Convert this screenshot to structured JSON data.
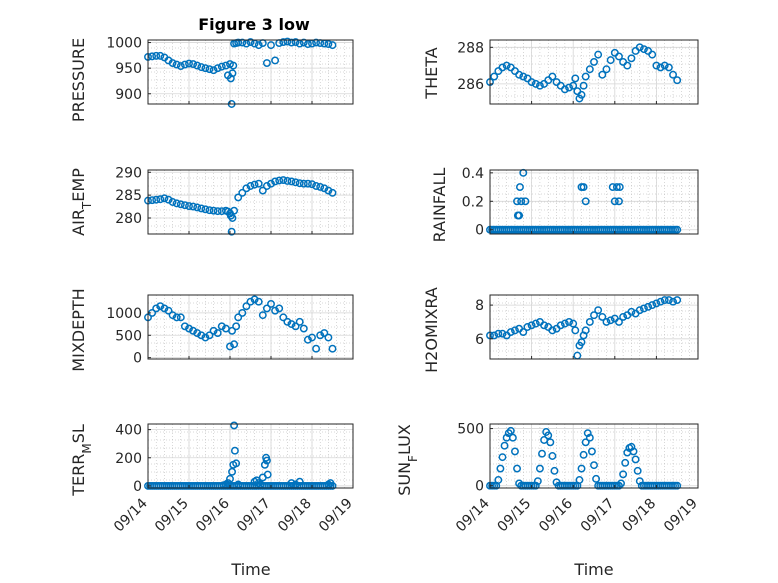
{
  "figure": {
    "title": "Figure 3 low",
    "xlabel": "Time",
    "marker_color": "#0072BD",
    "axis_color": "#262626",
    "grid_color": "#b0b0b0"
  },
  "chart_data": [
    {
      "type": "scatter",
      "ylabel": "PRESSURE",
      "title": "Figure 3 low",
      "xlim": [
        0,
        5
      ],
      "ylim": [
        880,
        1005
      ],
      "yticks": [
        900,
        950,
        1000
      ],
      "ytick_labels": [
        "900",
        "950",
        "1000"
      ],
      "xticks": [],
      "xtick_labels": [],
      "x": [
        0,
        0.1,
        0.2,
        0.3,
        0.4,
        0.5,
        0.6,
        0.7,
        0.8,
        0.9,
        1.0,
        1.1,
        1.2,
        1.3,
        1.4,
        1.5,
        1.6,
        1.7,
        1.8,
        1.9,
        1.95,
        2.0,
        2.02,
        2.04,
        2.06,
        2.08,
        2.1,
        2.15,
        2.2,
        2.3,
        2.4,
        2.5,
        2.6,
        2.7,
        2.8,
        2.9,
        3.0,
        3.1,
        3.2,
        3.3,
        3.4,
        3.5,
        3.6,
        3.7,
        3.8,
        3.9,
        4.0,
        4.1,
        4.2,
        4.3,
        4.4,
        4.5
      ],
      "values": [
        972,
        973,
        974,
        974,
        971,
        965,
        960,
        957,
        954,
        957,
        959,
        958,
        955,
        952,
        950,
        948,
        946,
        950,
        953,
        955,
        936,
        958,
        930,
        880,
        940,
        955,
        998,
        999,
        1000,
        1000,
        998,
        1001,
        998,
        995,
        999,
        960,
        995,
        965,
        999,
        1001,
        1002,
        1000,
        1001,
        998,
        1000,
        997,
        998,
        1000,
        999,
        998,
        997,
        995
      ]
    },
    {
      "type": "scatter",
      "ylabel": "THETA",
      "xlim": [
        0,
        5
      ],
      "ylim": [
        284.9,
        288.4
      ],
      "yticks": [
        286,
        288
      ],
      "ytick_labels": [
        "286",
        "288"
      ],
      "xticks": [],
      "xtick_labels": [],
      "x": [
        0,
        0.1,
        0.2,
        0.3,
        0.4,
        0.5,
        0.6,
        0.7,
        0.8,
        0.9,
        1.0,
        1.1,
        1.2,
        1.3,
        1.4,
        1.5,
        1.6,
        1.7,
        1.8,
        1.9,
        2.0,
        2.05,
        2.1,
        2.15,
        2.2,
        2.25,
        2.3,
        2.4,
        2.5,
        2.6,
        2.7,
        2.8,
        2.9,
        3.0,
        3.1,
        3.2,
        3.3,
        3.4,
        3.5,
        3.6,
        3.7,
        3.8,
        3.9,
        4.0,
        4.1,
        4.2,
        4.3,
        4.4,
        4.5
      ],
      "values": [
        286.1,
        286.4,
        286.7,
        286.9,
        287.0,
        286.9,
        286.7,
        286.5,
        286.4,
        286.3,
        286.1,
        286.0,
        285.9,
        286.0,
        286.2,
        286.4,
        286.1,
        285.9,
        285.7,
        285.8,
        285.9,
        286.3,
        285.6,
        285.2,
        285.4,
        285.9,
        286.4,
        286.8,
        287.2,
        287.6,
        286.5,
        286.8,
        287.3,
        287.7,
        287.5,
        287.2,
        287.0,
        287.4,
        287.8,
        288.0,
        287.9,
        287.8,
        287.6,
        287.0,
        286.9,
        287.0,
        286.9,
        286.5,
        286.2
      ]
    },
    {
      "type": "scatter",
      "ylabel": "AIR_TEMP",
      "xlim": [
        0,
        5
      ],
      "ylim": [
        276.5,
        290.5
      ],
      "yticks": [
        280,
        285,
        290
      ],
      "ytick_labels": [
        "280",
        "285",
        "290"
      ],
      "xticks": [],
      "xtick_labels": [],
      "x": [
        0,
        0.1,
        0.2,
        0.3,
        0.4,
        0.5,
        0.6,
        0.7,
        0.8,
        0.9,
        1.0,
        1.1,
        1.2,
        1.3,
        1.4,
        1.5,
        1.6,
        1.7,
        1.8,
        1.9,
        1.95,
        2.0,
        2.02,
        2.04,
        2.06,
        2.1,
        2.2,
        2.3,
        2.4,
        2.5,
        2.6,
        2.7,
        2.8,
        2.9,
        3.0,
        3.1,
        3.2,
        3.3,
        3.4,
        3.5,
        3.6,
        3.7,
        3.8,
        3.9,
        4.0,
        4.1,
        4.2,
        4.3,
        4.4,
        4.5
      ],
      "values": [
        283.8,
        283.9,
        284.0,
        284.1,
        284.3,
        284.0,
        283.5,
        283.2,
        283.0,
        282.8,
        282.6,
        282.5,
        282.3,
        282.1,
        281.9,
        281.7,
        281.6,
        281.5,
        281.5,
        281.6,
        281.4,
        281.0,
        280.5,
        277.0,
        280.0,
        281.6,
        284.5,
        285.5,
        286.5,
        287.0,
        287.3,
        287.5,
        286.0,
        287.0,
        287.5,
        288.0,
        288.2,
        288.3,
        288.1,
        288.0,
        287.8,
        287.6,
        287.5,
        287.5,
        287.4,
        287.0,
        286.8,
        286.5,
        286.0,
        285.5
      ]
    },
    {
      "type": "scatter",
      "ylabel": "RAINFALL",
      "xlim": [
        0,
        5
      ],
      "ylim": [
        -0.03,
        0.42
      ],
      "yticks": [
        0,
        0.2,
        0.4
      ],
      "ytick_labels": [
        "0",
        "0.2",
        "0.4"
      ],
      "xticks": [],
      "xtick_labels": [],
      "x": [
        0,
        0.05,
        0.1,
        0.15,
        0.2,
        0.25,
        0.3,
        0.35,
        0.4,
        0.45,
        0.5,
        0.55,
        0.6,
        0.65,
        0.7,
        0.75,
        0.8,
        0.85,
        0.9,
        0.95,
        1.0,
        1.05,
        1.1,
        1.15,
        1.2,
        1.25,
        1.3,
        1.35,
        1.4,
        1.45,
        1.5,
        1.55,
        1.6,
        1.65,
        1.7,
        1.75,
        1.8,
        1.85,
        1.9,
        1.95,
        2.0,
        2.05,
        2.1,
        2.15,
        2.2,
        2.25,
        2.3,
        2.35,
        2.4,
        2.45,
        2.5,
        2.55,
        2.6,
        2.65,
        2.7,
        2.75,
        2.8,
        2.85,
        2.9,
        2.95,
        3.0,
        3.05,
        3.1,
        3.15,
        3.2,
        3.25,
        3.3,
        3.35,
        3.4,
        3.45,
        3.5,
        3.55,
        3.6,
        3.65,
        3.7,
        3.75,
        3.8,
        3.85,
        3.9,
        3.95,
        4.0,
        4.05,
        4.1,
        4.15,
        4.2,
        4.25,
        4.3,
        4.35,
        4.4,
        4.45,
        4.5,
        0.65,
        0.67,
        0.7,
        0.72,
        0.75,
        0.8,
        0.85,
        2.2,
        2.25,
        2.3,
        2.95,
        3.0,
        3.05,
        3.1,
        3.12
      ],
      "values": [
        0,
        0,
        0,
        0,
        0,
        0,
        0,
        0,
        0,
        0,
        0,
        0,
        0,
        0,
        0,
        0,
        0,
        0,
        0,
        0,
        0,
        0,
        0,
        0,
        0,
        0,
        0,
        0,
        0,
        0,
        0,
        0,
        0,
        0,
        0,
        0,
        0,
        0,
        0,
        0,
        0,
        0,
        0,
        0,
        0,
        0,
        0,
        0,
        0,
        0,
        0,
        0,
        0,
        0,
        0,
        0,
        0,
        0,
        0,
        0,
        0,
        0,
        0,
        0,
        0,
        0,
        0,
        0,
        0,
        0,
        0,
        0,
        0,
        0,
        0,
        0,
        0,
        0,
        0,
        0,
        0,
        0,
        0,
        0,
        0,
        0,
        0,
        0,
        0,
        0,
        0,
        0.2,
        0.1,
        0.1,
        0.3,
        0.2,
        0.4,
        0.2,
        0.3,
        0.3,
        0.2,
        0.3,
        0.2,
        0.3,
        0.2,
        0.3
      ]
    },
    {
      "type": "scatter",
      "ylabel": "MIXDEPTH",
      "xlim": [
        0,
        5
      ],
      "ylim": [
        -30,
        1400
      ],
      "yticks": [
        0,
        500,
        1000
      ],
      "ytick_labels": [
        "0",
        "500",
        "1000"
      ],
      "xticks": [],
      "xtick_labels": [],
      "x": [
        0,
        0.1,
        0.2,
        0.3,
        0.4,
        0.5,
        0.6,
        0.7,
        0.8,
        0.9,
        1.0,
        1.1,
        1.2,
        1.3,
        1.4,
        1.5,
        1.6,
        1.7,
        1.8,
        1.9,
        2.0,
        2.05,
        2.1,
        2.15,
        2.2,
        2.3,
        2.4,
        2.5,
        2.6,
        2.7,
        2.8,
        2.9,
        3.0,
        3.1,
        3.2,
        3.3,
        3.4,
        3.5,
        3.6,
        3.7,
        3.8,
        3.9,
        4.0,
        4.1,
        4.2,
        4.3,
        4.4,
        4.5
      ],
      "values": [
        900,
        1000,
        1100,
        1150,
        1100,
        1050,
        950,
        900,
        900,
        700,
        650,
        600,
        550,
        500,
        450,
        500,
        600,
        550,
        700,
        650,
        250,
        600,
        300,
        700,
        900,
        1000,
        1150,
        1250,
        1300,
        1250,
        950,
        1100,
        1200,
        1050,
        1100,
        900,
        800,
        750,
        700,
        800,
        650,
        400,
        450,
        200,
        500,
        550,
        450,
        200
      ]
    },
    {
      "type": "scatter",
      "ylabel": "H2OMIXRA",
      "xlim": [
        0,
        5
      ],
      "ylim": [
        4.8,
        8.6
      ],
      "yticks": [
        6,
        8
      ],
      "ytick_labels": [
        "6",
        "8"
      ],
      "xticks": [],
      "xtick_labels": [],
      "x": [
        0,
        0.1,
        0.2,
        0.3,
        0.4,
        0.5,
        0.6,
        0.7,
        0.8,
        0.9,
        1.0,
        1.1,
        1.2,
        1.3,
        1.4,
        1.5,
        1.6,
        1.7,
        1.8,
        1.9,
        2.0,
        2.05,
        2.1,
        2.15,
        2.2,
        2.25,
        2.3,
        2.4,
        2.5,
        2.6,
        2.7,
        2.8,
        2.9,
        3.0,
        3.1,
        3.2,
        3.3,
        3.4,
        3.5,
        3.6,
        3.7,
        3.8,
        3.9,
        4.0,
        4.1,
        4.2,
        4.3,
        4.4,
        4.5
      ],
      "values": [
        6.2,
        6.2,
        6.3,
        6.3,
        6.2,
        6.4,
        6.5,
        6.6,
        6.4,
        6.7,
        6.8,
        6.9,
        7.0,
        6.8,
        6.7,
        6.5,
        6.6,
        6.8,
        6.9,
        7.0,
        6.9,
        6.5,
        5.0,
        5.6,
        5.8,
        6.2,
        6.5,
        7.0,
        7.4,
        7.7,
        7.3,
        7.0,
        7.1,
        7.2,
        7.0,
        7.3,
        7.4,
        7.6,
        7.5,
        7.7,
        7.8,
        7.9,
        8.0,
        8.1,
        8.2,
        8.3,
        8.3,
        8.2,
        8.3
      ]
    },
    {
      "type": "scatter",
      "ylabel": "TERR_MSL",
      "xlim": [
        0,
        5
      ],
      "ylim": [
        -15,
        440
      ],
      "yticks": [
        0,
        200,
        400
      ],
      "ytick_labels": [
        "0",
        "200",
        "400"
      ],
      "xticks": [
        0,
        1,
        2,
        3,
        4,
        5
      ],
      "xtick_labels": [
        "09/14",
        "09/15",
        "09/16",
        "09/17",
        "09/18",
        "09/19"
      ],
      "x": [
        0,
        0.05,
        0.1,
        0.15,
        0.2,
        0.25,
        0.3,
        0.35,
        0.4,
        0.45,
        0.5,
        0.55,
        0.6,
        0.65,
        0.7,
        0.75,
        0.8,
        0.85,
        0.9,
        0.95,
        1.0,
        1.05,
        1.1,
        1.15,
        1.2,
        1.25,
        1.3,
        1.35,
        1.4,
        1.45,
        1.5,
        1.55,
        1.6,
        1.65,
        1.7,
        1.75,
        1.8,
        1.85,
        1.9,
        1.95,
        2.0,
        2.05,
        2.1,
        2.15,
        2.2,
        2.25,
        2.3,
        2.35,
        2.4,
        2.45,
        2.5,
        2.55,
        2.6,
        2.65,
        2.7,
        2.75,
        2.8,
        2.85,
        2.9,
        2.95,
        3.0,
        3.05,
        3.1,
        3.15,
        3.2,
        3.25,
        3.3,
        3.35,
        3.4,
        3.45,
        3.5,
        3.55,
        3.6,
        3.65,
        3.7,
        3.75,
        3.8,
        3.85,
        3.9,
        3.95,
        4.0,
        4.05,
        4.1,
        4.15,
        4.2,
        4.25,
        4.3,
        4.35,
        4.4,
        4.45,
        4.5,
        1.85,
        1.9,
        1.95,
        2.0,
        2.05,
        2.08,
        2.1,
        2.12,
        2.15,
        2.2,
        2.6,
        2.65,
        2.7,
        2.75,
        2.8,
        2.85,
        2.88,
        2.9,
        2.92,
        3.5,
        3.6,
        3.7,
        4.4,
        4.45
      ],
      "values": [
        0,
        0,
        0,
        0,
        0,
        0,
        0,
        0,
        0,
        0,
        0,
        0,
        0,
        0,
        0,
        0,
        0,
        0,
        0,
        0,
        0,
        0,
        0,
        0,
        0,
        0,
        0,
        0,
        0,
        0,
        0,
        0,
        0,
        0,
        0,
        0,
        0,
        0,
        0,
        0,
        0,
        0,
        0,
        0,
        0,
        0,
        0,
        0,
        0,
        0,
        0,
        0,
        0,
        0,
        0,
        0,
        0,
        0,
        0,
        0,
        0,
        0,
        0,
        0,
        0,
        0,
        0,
        0,
        0,
        0,
        0,
        0,
        0,
        0,
        0,
        0,
        0,
        0,
        0,
        0,
        0,
        0,
        0,
        0,
        0,
        0,
        0,
        0,
        0,
        0,
        0,
        5,
        10,
        20,
        50,
        100,
        150,
        430,
        250,
        160,
        10,
        30,
        40,
        20,
        10,
        60,
        150,
        200,
        180,
        80,
        20,
        10,
        30,
        10,
        20
      ]
    },
    {
      "type": "scatter",
      "ylabel": "SUN_FLUX",
      "xlim": [
        0,
        5
      ],
      "ylim": [
        -20,
        540
      ],
      "yticks": [
        0,
        500
      ],
      "ytick_labels": [
        "0",
        "500"
      ],
      "xticks": [
        0,
        1,
        2,
        3,
        4,
        5
      ],
      "xtick_labels": [
        "09/14",
        "09/15",
        "09/16",
        "09/17",
        "09/18",
        "09/19"
      ],
      "x": [
        0,
        0.05,
        0.1,
        0.15,
        0.2,
        0.25,
        0.3,
        0.35,
        0.4,
        0.45,
        0.5,
        0.55,
        0.6,
        0.65,
        0.7,
        0.75,
        0.8,
        0.85,
        0.9,
        0.95,
        1.0,
        1.05,
        1.1,
        1.15,
        1.2,
        1.25,
        1.3,
        1.35,
        1.4,
        1.45,
        1.5,
        1.55,
        1.6,
        1.65,
        1.7,
        1.75,
        1.8,
        1.85,
        1.9,
        1.95,
        2.0,
        2.05,
        2.1,
        2.15,
        2.2,
        2.25,
        2.3,
        2.35,
        2.4,
        2.45,
        2.5,
        2.55,
        2.6,
        2.65,
        2.7,
        2.75,
        2.8,
        2.85,
        2.9,
        2.95,
        3.0,
        3.05,
        3.1,
        3.15,
        3.2,
        3.25,
        3.3,
        3.35,
        3.4,
        3.45,
        3.5,
        3.55,
        3.6,
        3.65,
        3.7,
        3.75,
        3.8,
        3.85,
        3.9,
        3.95,
        4.0,
        4.05,
        4.1,
        4.15,
        4.2,
        4.25,
        4.3,
        4.35,
        4.4,
        4.45,
        4.5
      ],
      "values": [
        0,
        0,
        0,
        0,
        50,
        150,
        250,
        350,
        420,
        460,
        480,
        420,
        300,
        150,
        20,
        0,
        0,
        0,
        0,
        0,
        0,
        0,
        0,
        40,
        150,
        280,
        400,
        470,
        440,
        380,
        260,
        130,
        30,
        0,
        0,
        0,
        0,
        0,
        0,
        0,
        0,
        0,
        0,
        50,
        150,
        270,
        380,
        460,
        420,
        300,
        180,
        60,
        0,
        0,
        0,
        0,
        0,
        0,
        0,
        0,
        0,
        0,
        0,
        20,
        100,
        200,
        290,
        330,
        340,
        300,
        230,
        130,
        40,
        0,
        0,
        0,
        0,
        0,
        0,
        0,
        0,
        0,
        0,
        0,
        0,
        0,
        0,
        0,
        0,
        0,
        0
      ]
    }
  ]
}
